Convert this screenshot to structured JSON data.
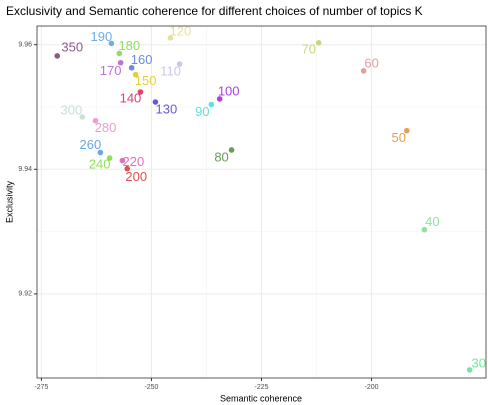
{
  "chart_data": {
    "type": "scatter",
    "title": "Exclusivity and Semantic coherence for different choices of number of topics K",
    "xlabel": "Semantic coherence",
    "ylabel": "Exclusivity",
    "xlim": [
      -276,
      -174
    ],
    "ylim": [
      9.9065,
      9.963
    ],
    "xticks": [
      -275,
      -250,
      -225,
      -200
    ],
    "yticks": [
      9.92,
      9.94,
      9.96
    ],
    "grid": true,
    "points": [
      {
        "label": "350",
        "x": -271.4,
        "y": 9.9582,
        "color": "#8b5a86"
      },
      {
        "label": "190",
        "x": -259.1,
        "y": 9.9602,
        "color": "#6fb0e0"
      },
      {
        "label": "180",
        "x": -257.3,
        "y": 9.9586,
        "color": "#8de05a"
      },
      {
        "label": "120",
        "x": -245.7,
        "y": 9.9611,
        "color": "#e6e0a0"
      },
      {
        "label": "70",
        "x": -212.0,
        "y": 9.9603,
        "color": "#c8d87a"
      },
      {
        "label": "60",
        "x": -201.8,
        "y": 9.9558,
        "color": "#e0a0a0"
      },
      {
        "label": "170",
        "x": -257.0,
        "y": 9.9571,
        "color": "#c070d8"
      },
      {
        "label": "160",
        "x": -254.5,
        "y": 9.9563,
        "color": "#6a8ce0"
      },
      {
        "label": "110",
        "x": -243.6,
        "y": 9.9569,
        "color": "#c8c8e8"
      },
      {
        "label": "150",
        "x": -253.6,
        "y": 9.9552,
        "color": "#e0d040"
      },
      {
        "label": "140",
        "x": -252.5,
        "y": 9.9524,
        "color": "#e04070"
      },
      {
        "label": "130",
        "x": -249.1,
        "y": 9.9508,
        "color": "#6a5ad0"
      },
      {
        "label": "100",
        "x": -234.5,
        "y": 9.9513,
        "color": "#b040e0"
      },
      {
        "label": "90",
        "x": -236.4,
        "y": 9.9504,
        "color": "#60e0d8"
      },
      {
        "label": "300",
        "x": -265.7,
        "y": 9.9484,
        "color": "#c8e0d8"
      },
      {
        "label": "280",
        "x": -262.7,
        "y": 9.9478,
        "color": "#e8a0d0"
      },
      {
        "label": "50",
        "x": -192.0,
        "y": 9.9462,
        "color": "#e8a050"
      },
      {
        "label": "80",
        "x": -231.8,
        "y": 9.9431,
        "color": "#6a9a5a"
      },
      {
        "label": "260",
        "x": -261.6,
        "y": 9.9427,
        "color": "#6aa8e0"
      },
      {
        "label": "240",
        "x": -259.5,
        "y": 9.9418,
        "color": "#90e050"
      },
      {
        "label": "220",
        "x": -256.6,
        "y": 9.9414,
        "color": "#e070c0"
      },
      {
        "label": "200",
        "x": -255.5,
        "y": 9.9401,
        "color": "#e05050"
      },
      {
        "label": "40",
        "x": -188.0,
        "y": 9.9303,
        "color": "#90e0a0"
      },
      {
        "label": "30",
        "x": -177.7,
        "y": 9.9078,
        "color": "#70e8a0"
      }
    ]
  }
}
